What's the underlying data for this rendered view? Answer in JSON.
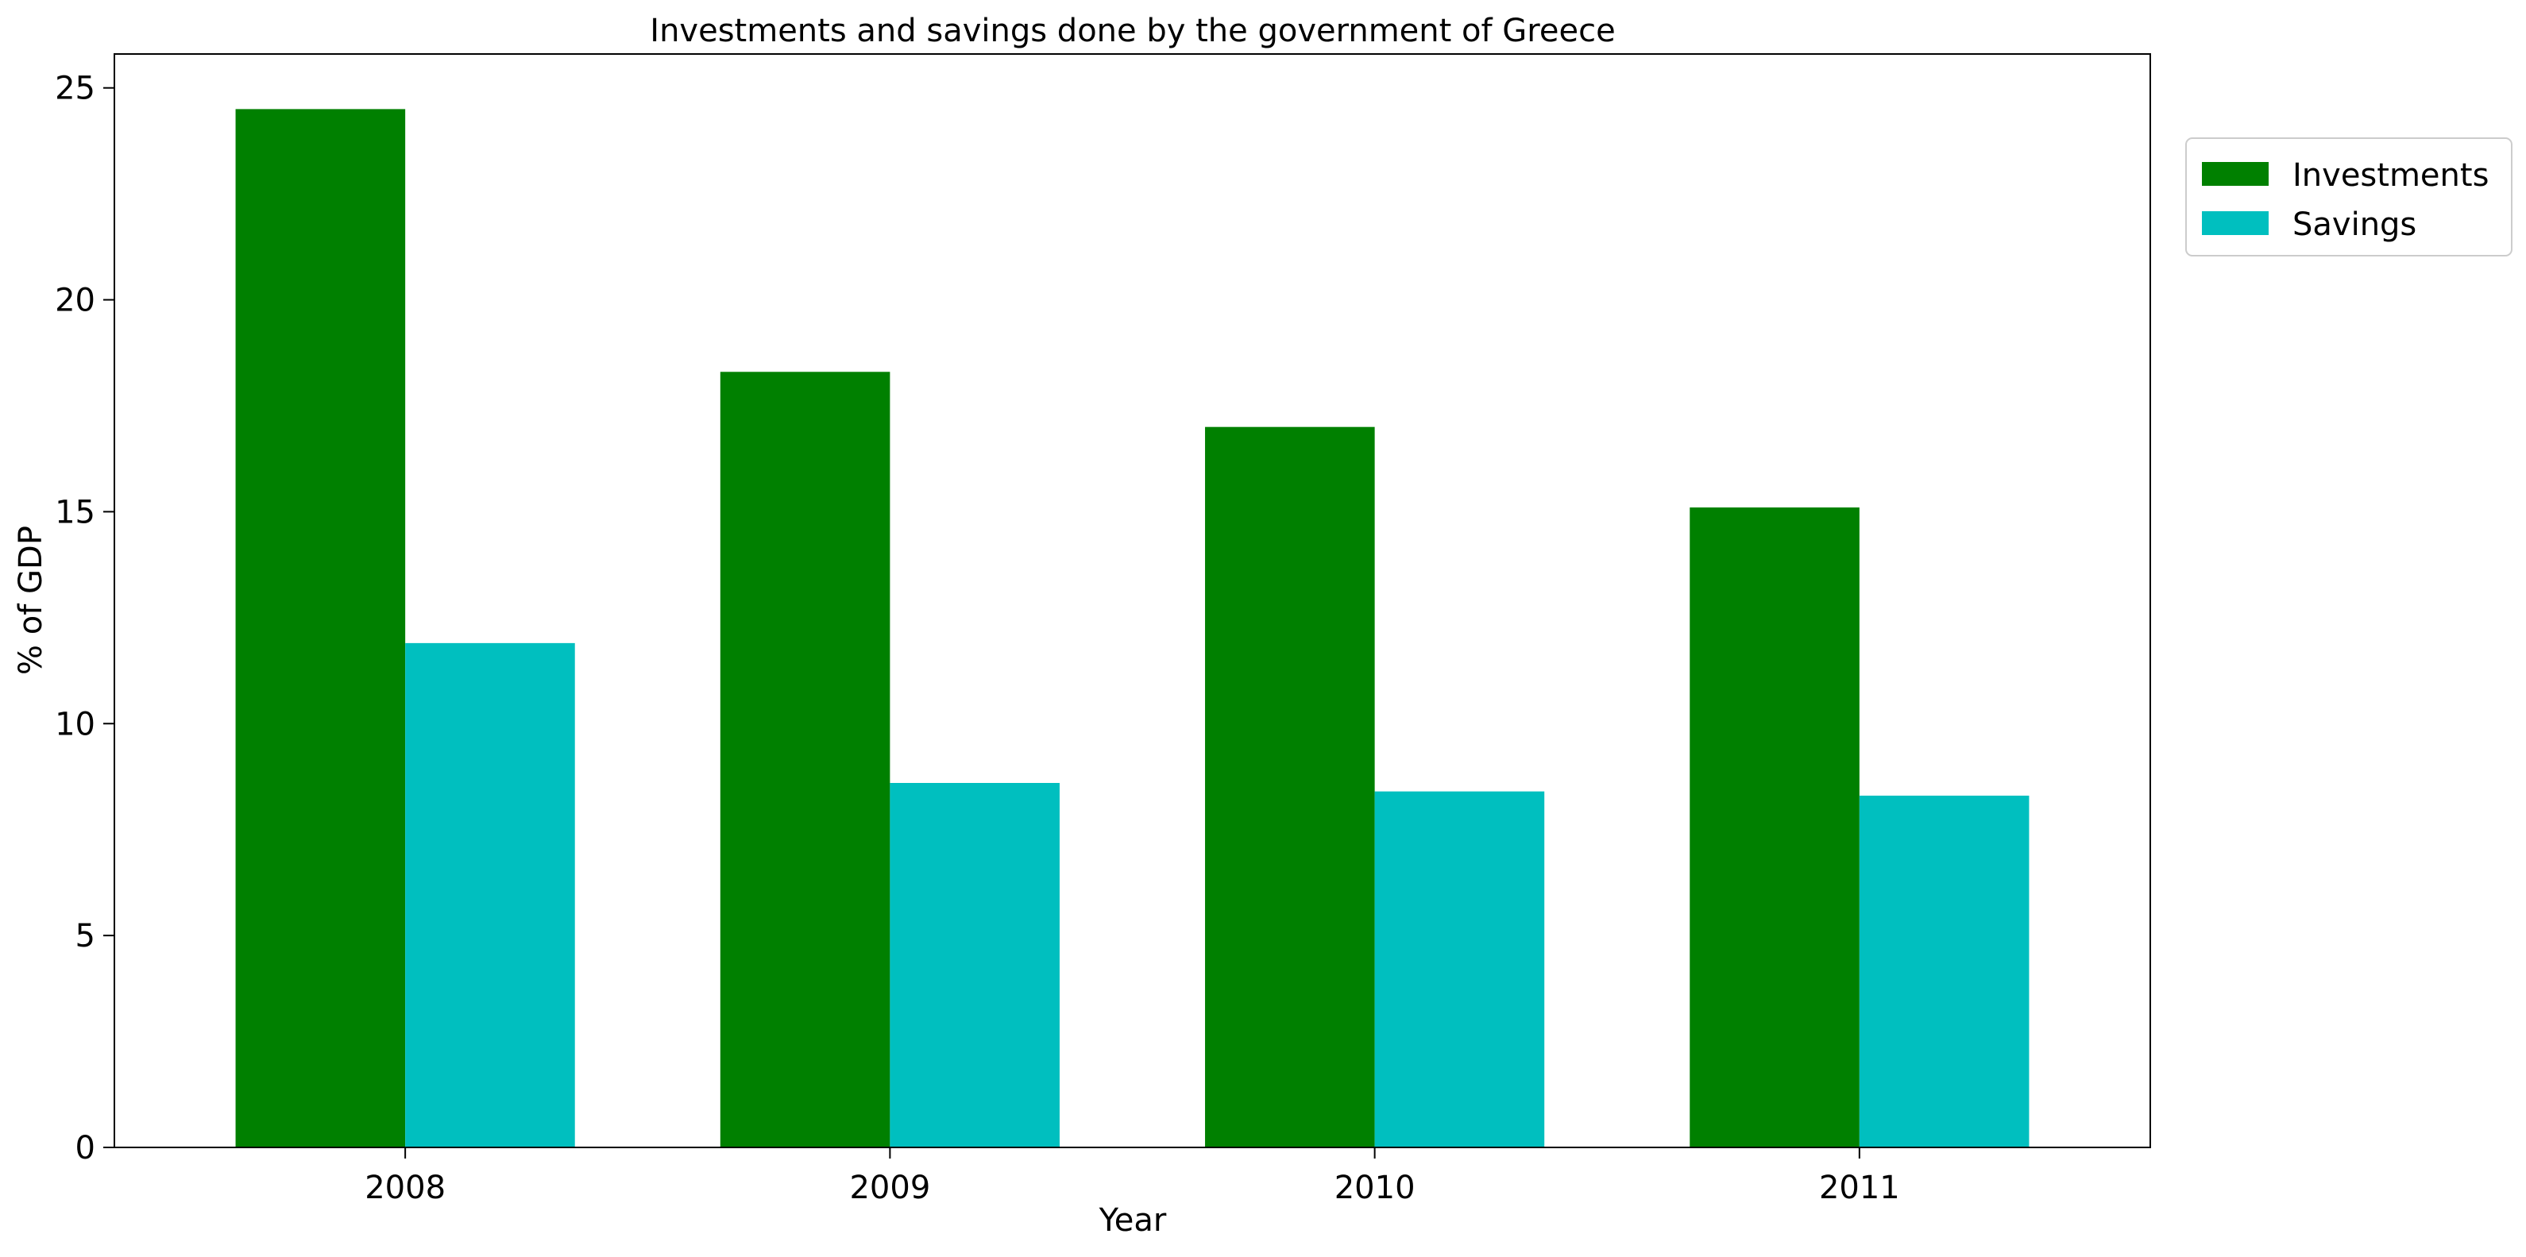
{
  "chart_data": {
    "type": "bar",
    "title": "Investments and savings done by the government of Greece",
    "xlabel": "Year",
    "ylabel": "% of GDP",
    "categories": [
      "2008",
      "2009",
      "2010",
      "2011"
    ],
    "series": [
      {
        "name": "Investments",
        "color": "#008000",
        "values": [
          24.5,
          18.3,
          17.0,
          15.1
        ]
      },
      {
        "name": "Savings",
        "color": "#00BFBF",
        "values": [
          11.9,
          8.6,
          8.4,
          8.3
        ]
      }
    ],
    "ylim": [
      0,
      25.8
    ],
    "yticks": [
      "0",
      "5",
      "10",
      "15",
      "20",
      "25"
    ],
    "grid": false,
    "legend": "upper-right-outside"
  }
}
